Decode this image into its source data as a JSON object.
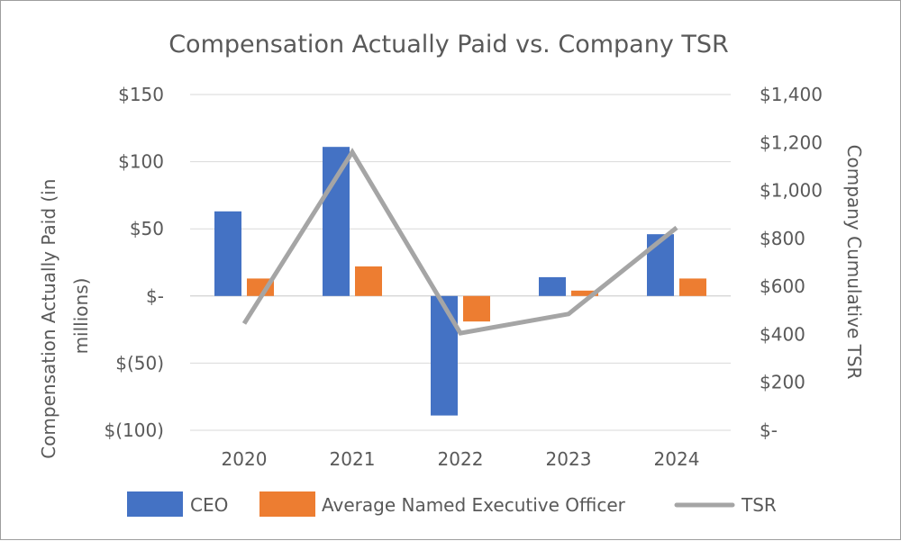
{
  "chart_data": {
    "type": "bar",
    "title": "Compensation Actually Paid vs. Company TSR",
    "categories": [
      "2020",
      "2021",
      "2022",
      "2023",
      "2024"
    ],
    "series": [
      {
        "name": "CEO",
        "type": "bar",
        "axis": "left",
        "color": "#4472C4",
        "values": [
          63,
          111,
          -89,
          14,
          46
        ]
      },
      {
        "name": "Average Named Executive Officer",
        "type": "bar",
        "axis": "left",
        "color": "#ED7D31",
        "values": [
          13,
          22,
          -19,
          4,
          13
        ]
      },
      {
        "name": "TSR",
        "type": "line",
        "axis": "right",
        "color": "#A5A5A5",
        "values": [
          445,
          1160,
          405,
          485,
          845
        ]
      }
    ],
    "y_left": {
      "label": "Compensation Actually Paid (in millions)",
      "label_lines": [
        "Compensation Actually Paid (in",
        "millions)"
      ],
      "ylim": [
        -100,
        150
      ],
      "ticks": [
        150,
        100,
        50,
        0,
        -50,
        -100
      ],
      "tick_labels": [
        "$150",
        "$100",
        "$50",
        "$-",
        "$(50)",
        "$(100)"
      ]
    },
    "y_right": {
      "label": "Company Cumulative TSR",
      "ylim": [
        0,
        1400
      ],
      "ticks": [
        1400,
        1200,
        1000,
        800,
        600,
        400,
        200,
        0
      ],
      "tick_labels": [
        "$1,400",
        "$1,200",
        "$1,000",
        "$800",
        "$600",
        "$400",
        "$200",
        "$-"
      ]
    },
    "grid": true,
    "legend": {
      "position": "bottom",
      "entries": [
        "CEO",
        "Average Named Executive Officer",
        "TSR"
      ]
    }
  }
}
